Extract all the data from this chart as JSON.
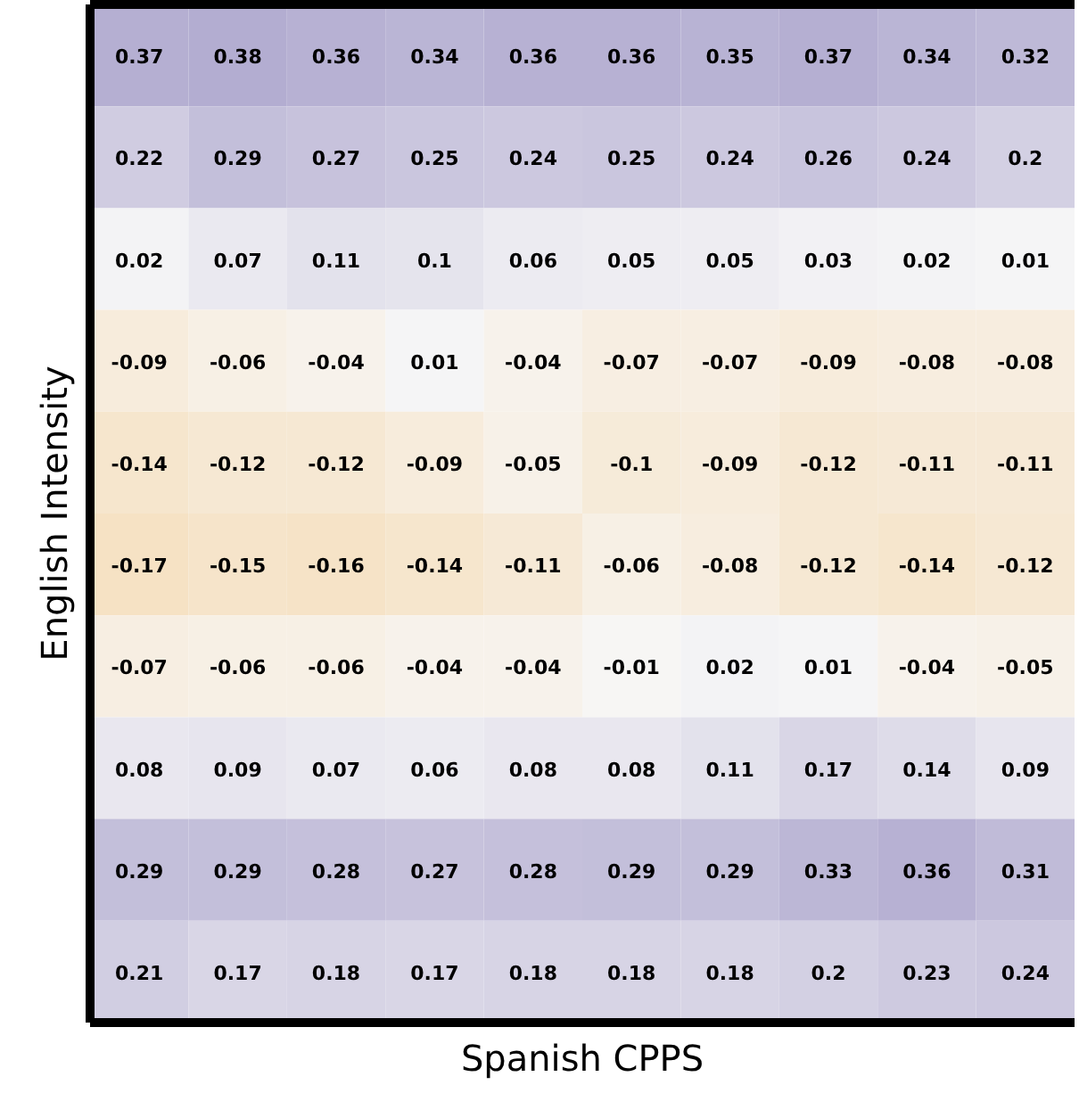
{
  "chart_data": {
    "type": "heatmap",
    "xlabel": "Spanish CPPS",
    "ylabel": "English Intensity",
    "categories": [
      null,
      null,
      null,
      null,
      null,
      null,
      null,
      null,
      null,
      null
    ],
    "y_categories": [
      null,
      null,
      null,
      null,
      null,
      null,
      null,
      null,
      null,
      null
    ],
    "cells": [
      [
        0.37,
        0.38,
        0.36,
        0.34,
        0.36,
        0.36,
        0.35,
        0.37,
        0.34,
        0.32
      ],
      [
        0.22,
        0.29,
        0.27,
        0.25,
        0.24,
        0.25,
        0.24,
        0.26,
        0.24,
        0.2
      ],
      [
        0.02,
        0.07,
        0.11,
        0.1,
        0.06,
        0.05,
        0.05,
        0.03,
        0.02,
        0.01
      ],
      [
        -0.09,
        -0.06,
        -0.04,
        0.01,
        -0.04,
        -0.07,
        -0.07,
        -0.09,
        -0.08,
        -0.08
      ],
      [
        -0.14,
        -0.12,
        -0.12,
        -0.09,
        -0.05,
        -0.1,
        -0.09,
        -0.12,
        -0.11,
        -0.11
      ],
      [
        -0.17,
        -0.15,
        -0.16,
        -0.14,
        -0.11,
        -0.06,
        -0.08,
        -0.12,
        -0.14,
        -0.12
      ],
      [
        -0.07,
        -0.06,
        -0.06,
        -0.04,
        -0.04,
        -0.01,
        0.02,
        0.01,
        -0.04,
        -0.05
      ],
      [
        0.08,
        0.09,
        0.07,
        0.06,
        0.08,
        0.08,
        0.11,
        0.17,
        0.14,
        0.09
      ],
      [
        0.29,
        0.29,
        0.28,
        0.27,
        0.28,
        0.29,
        0.29,
        0.33,
        0.36,
        0.31
      ],
      [
        0.21,
        0.17,
        0.18,
        0.17,
        0.18,
        0.18,
        0.18,
        0.2,
        0.23,
        0.24
      ]
    ],
    "data_labels": true
  }
}
